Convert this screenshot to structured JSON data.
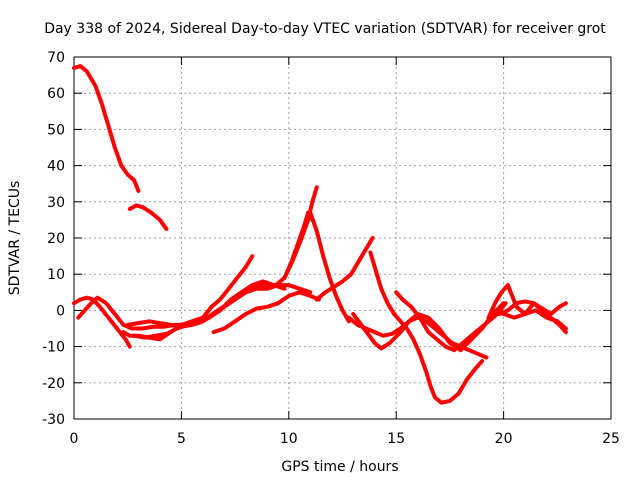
{
  "chart_data": {
    "type": "line",
    "title": "Day 338 of 2024, Sidereal Day-to-day VTEC variation (SDTVAR) for receiver grot",
    "xlabel": "GPS time / hours",
    "ylabel": "SDTVAR / TECUs",
    "xlim": [
      0,
      25
    ],
    "ylim": [
      -30,
      70
    ],
    "xticks": [
      0,
      5,
      10,
      15,
      20,
      25
    ],
    "yticks": [
      -30,
      -20,
      -10,
      0,
      10,
      20,
      30,
      40,
      50,
      60,
      70
    ],
    "xtick_labels": [
      "0",
      "5",
      "10",
      "15",
      "20",
      "25"
    ],
    "ytick_labels": [
      "-30",
      "-20",
      "-10",
      "0",
      "10",
      "20",
      "30",
      "40",
      "50",
      "60",
      "70"
    ],
    "grid": true,
    "legend": "none",
    "series_color": "#ff0000",
    "series": [
      {
        "name": "seg-early-high",
        "x": [
          0,
          0.3,
          0.6,
          1.0,
          1.3,
          1.6,
          1.9,
          2.2,
          2.5,
          2.8,
          3.0
        ],
        "y": [
          67,
          67.5,
          66,
          62,
          57,
          51,
          45,
          40,
          37.5,
          36,
          33
        ]
      },
      {
        "name": "seg-early-mid",
        "x": [
          2.6,
          2.9,
          3.2,
          3.6,
          4.0,
          4.3
        ],
        "y": [
          28,
          29,
          28.5,
          27,
          25,
          22.5
        ]
      },
      {
        "name": "seg-a",
        "x": [
          0,
          0.3,
          0.6,
          0.9,
          1.2,
          1.6,
          2.0,
          2.4,
          2.6
        ],
        "y": [
          2,
          3,
          3.5,
          3,
          1,
          -2,
          -5,
          -8,
          -10
        ]
      },
      {
        "name": "seg-b",
        "x": [
          0.2,
          0.5,
          0.8,
          1.1,
          1.5,
          1.9,
          2.3,
          2.7,
          3.2,
          3.7,
          4.2,
          4.7,
          5.2,
          5.7,
          6.2,
          6.7,
          7.2,
          7.7,
          8.2,
          8.6,
          9.0,
          9.4,
          9.8,
          10.2,
          10.6,
          10.9,
          11.1,
          11.3
        ],
        "y": [
          -2,
          0,
          2,
          3.5,
          2,
          -1,
          -4,
          -5,
          -5,
          -4.5,
          -4.5,
          -4,
          -4,
          -3.5,
          -2,
          0,
          2,
          4,
          6,
          7,
          7,
          7,
          9,
          14,
          20,
          25,
          30,
          34
        ]
      },
      {
        "name": "seg-c",
        "x": [
          11.0,
          11.3,
          11.6,
          11.9,
          12.2,
          12.5,
          12.8
        ],
        "y": [
          27,
          22,
          15,
          9,
          4,
          0,
          -3
        ]
      },
      {
        "name": "seg-d",
        "x": [
          11.3,
          11.7,
          12.1,
          12.5,
          12.9,
          13.3,
          13.6,
          13.9
        ],
        "y": [
          3,
          5,
          6.5,
          8,
          10,
          14,
          17,
          20
        ]
      },
      {
        "name": "seg-e",
        "x": [
          12.8,
          13.2,
          13.6,
          14.0,
          14.4,
          14.8,
          15.2,
          15.6,
          16.0,
          16.4,
          16.8,
          17.2,
          17.6,
          18.0,
          18.4,
          18.8,
          19.2
        ],
        "y": [
          -2,
          -4,
          -5,
          -6,
          -7,
          -6.5,
          -5,
          -3,
          -2,
          -3,
          -5,
          -7,
          -9,
          -10,
          -11,
          -12,
          -13
        ]
      },
      {
        "name": "seg-f",
        "x": [
          13.8,
          14.0,
          14.3,
          14.6,
          14.9,
          15.2,
          15.5,
          15.8,
          16.1,
          16.4,
          16.6,
          16.8,
          17.1,
          17.5,
          17.9,
          18.3,
          18.7,
          19.0
        ],
        "y": [
          16,
          12,
          6,
          2,
          -1,
          -3,
          -5,
          -8,
          -12,
          -17,
          -21,
          -24,
          -25.5,
          -25,
          -23,
          -19,
          -16,
          -14
        ]
      },
      {
        "name": "seg-g",
        "x": [
          13.0,
          13.5,
          14.0,
          14.3,
          14.7,
          15.2,
          15.6,
          16.0,
          16.5,
          17.0,
          17.5,
          18.0,
          18.5,
          19.0,
          19.5,
          20.0
        ],
        "y": [
          -1,
          -5,
          -9,
          -10.5,
          -9,
          -6,
          -3,
          -1,
          -2,
          -5,
          -9,
          -11,
          -8,
          -5,
          -1,
          2
        ]
      },
      {
        "name": "seg-h",
        "x": [
          15.0,
          15.3,
          15.7,
          16.1,
          16.5,
          16.9,
          17.3,
          17.7,
          18.1,
          18.5,
          18.9,
          19.3,
          19.7,
          20.1
        ],
        "y": [
          5,
          3,
          1,
          -2,
          -6,
          -8,
          -10,
          -11,
          -9,
          -7,
          -5,
          -3,
          -1,
          2
        ]
      },
      {
        "name": "seg-i",
        "x": [
          19.3,
          19.6,
          19.9,
          20.2,
          20.6,
          21.0,
          21.4,
          21.8,
          22.2,
          22.6,
          22.9
        ],
        "y": [
          -2,
          2,
          5,
          7,
          1,
          -1,
          2,
          0,
          -2,
          -4,
          -6
        ]
      },
      {
        "name": "seg-j",
        "x": [
          19.8,
          20.2,
          20.6,
          21.0,
          21.4,
          21.8,
          22.2,
          22.6,
          22.9
        ],
        "y": [
          -1,
          0,
          2,
          2.5,
          2,
          0.5,
          -1,
          1,
          2
        ]
      },
      {
        "name": "seg-k",
        "x": [
          19.5,
          20.0,
          20.5,
          21.0,
          21.5,
          22.0,
          22.5,
          22.9
        ],
        "y": [
          0,
          -1,
          -2,
          -1,
          0,
          -2,
          -3,
          -5
        ]
      },
      {
        "name": "seg-l",
        "x": [
          2.3,
          2.6,
          3.0,
          3.5,
          4.0,
          4.5,
          5.0,
          5.5,
          6.0,
          6.4,
          6.8,
          7.2,
          7.6,
          8.0,
          8.3
        ],
        "y": [
          -6,
          -7,
          -7,
          -7.5,
          -8,
          -6,
          -4,
          -3,
          -2,
          1,
          3,
          6,
          9,
          12,
          15
        ]
      },
      {
        "name": "seg-m",
        "x": [
          2.5,
          3.0,
          3.5,
          4.0,
          4.5,
          5.0,
          5.5,
          6.0,
          6.5,
          7.0,
          7.5,
          8.0,
          8.5,
          9.0,
          9.5,
          10.0,
          10.5,
          11.0
        ],
        "y": [
          -4,
          -3.5,
          -3,
          -3.5,
          -4,
          -4.5,
          -4,
          -3,
          -1,
          1,
          3,
          5,
          6,
          6,
          7,
          7,
          6,
          5
        ]
      },
      {
        "name": "seg-n",
        "x": [
          6.5,
          7.0,
          7.5,
          8.0,
          8.5,
          9.0,
          9.5,
          10.0,
          10.5,
          11.0,
          11.4
        ],
        "y": [
          -6,
          -5,
          -3,
          -1,
          0.5,
          1,
          2,
          4,
          5,
          4,
          3
        ]
      },
      {
        "name": "seg-o",
        "x": [
          2.8,
          3.3,
          3.8,
          4.3,
          4.8,
          5.3,
          5.8,
          6.3,
          6.8,
          7.3,
          7.8,
          8.3,
          8.8,
          9.3,
          9.8
        ],
        "y": [
          -7,
          -7.5,
          -7,
          -6.5,
          -5,
          -4,
          -3.5,
          -2,
          0,
          3,
          5,
          7,
          8,
          7,
          6
        ]
      },
      {
        "name": "seg-p",
        "x": [
          9.8,
          10.1,
          10.4,
          10.7,
          10.9,
          11.1
        ],
        "y": [
          9,
          13,
          18,
          23,
          27,
          25
        ]
      }
    ]
  }
}
